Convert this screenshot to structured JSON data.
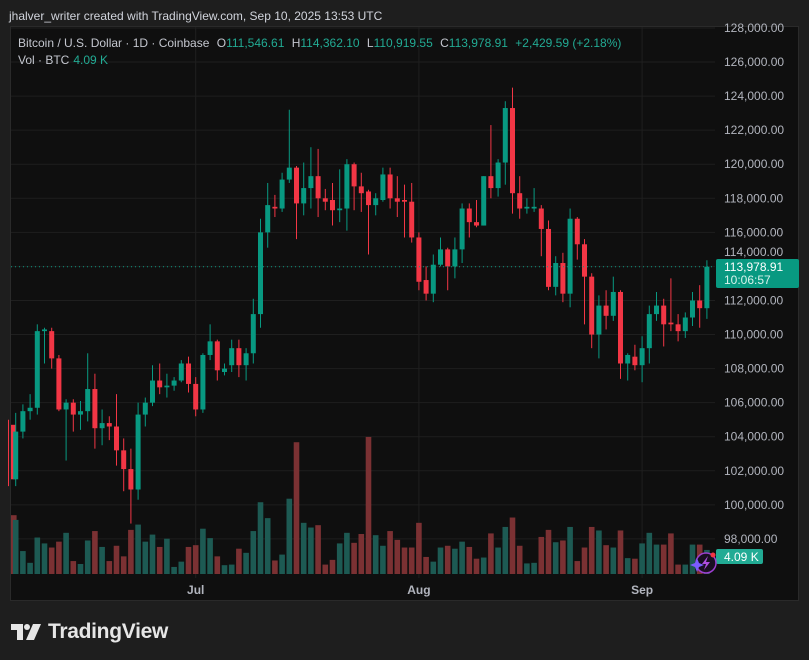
{
  "credit": "jhalver_writer created with TradingView.com, Sep 10, 2025 13:53 UTC",
  "legend": {
    "symbol": "Bitcoin / U.S. Dollar · 1D · Coinbase",
    "o_label": "O",
    "o": "111,546.61",
    "h_label": "H",
    "h": "114,362.10",
    "l_label": "L",
    "l": "110,919.55",
    "c_label": "C",
    "c": "113,978.91",
    "change": "+2,429.59 (+2.18%)",
    "vol_label": "Vol · BTC",
    "vol": "4.09 K"
  },
  "price_label": {
    "price": "113,978.91",
    "countdown": "10:06:57"
  },
  "vol_label_box": "4.09 K",
  "logo": "TradingView",
  "icons": {
    "assistant": "lightning-icon",
    "logo": "tradingview-logo-icon"
  },
  "colors": {
    "up": "#089981",
    "down": "#f23645",
    "vol_up": "#1d5a53",
    "vol_down": "#7b3133",
    "bg": "#0f0f0f"
  },
  "chart_data": {
    "type": "candlestick",
    "symbol": "Bitcoin / U.S. Dollar",
    "interval": "1D",
    "y_axis": {
      "position": "right",
      "range": [
        97000,
        128500
      ],
      "ticks": [
        "128,000.00",
        "126,000.00",
        "124,000.00",
        "122,000.00",
        "120,000.00",
        "118,000.00",
        "116,000.00",
        "114,000.00",
        "112,000.00",
        "110,000.00",
        "108,000.00",
        "106,000.00",
        "104,000.00",
        "102,000.00",
        "100,000.00",
        "98,000.00"
      ]
    },
    "x_axis": {
      "ticks": [
        {
          "label": "Jul",
          "date": "2025-07-01"
        },
        {
          "label": "Aug",
          "date": "2025-08-01"
        },
        {
          "label": "Sep",
          "date": "2025-09-01"
        }
      ]
    },
    "grid": true,
    "columns": [
      "date",
      "open",
      "high",
      "low",
      "close",
      "volume_k_btc"
    ],
    "candles": [
      [
        "2025-06-05",
        104700,
        105000,
        101100,
        101500,
        10.0
      ],
      [
        "2025-06-06",
        101500,
        105400,
        101100,
        104300,
        9.2
      ],
      [
        "2025-06-07",
        104300,
        105900,
        103900,
        105500,
        3.9
      ],
      [
        "2025-06-08",
        105500,
        106500,
        105000,
        105700,
        1.9
      ],
      [
        "2025-06-09",
        105700,
        110600,
        105300,
        110200,
        6.2
      ],
      [
        "2025-06-10",
        110200,
        110400,
        108300,
        110300,
        5.2
      ],
      [
        "2025-06-11",
        110200,
        110400,
        108000,
        108600,
        4.5
      ],
      [
        "2025-06-12",
        108600,
        108800,
        105500,
        105600,
        5.5
      ],
      [
        "2025-06-13",
        105600,
        106200,
        102600,
        106000,
        7.0
      ],
      [
        "2025-06-14",
        106000,
        106200,
        104300,
        105300,
        2.2
      ],
      [
        "2025-06-15",
        105300,
        106100,
        104400,
        105500,
        1.7
      ],
      [
        "2025-06-16",
        105500,
        108900,
        104900,
        106800,
        5.7
      ],
      [
        "2025-06-17",
        106800,
        107700,
        103300,
        104500,
        7.3
      ],
      [
        "2025-06-18",
        104500,
        105600,
        103500,
        104800,
        4.6
      ],
      [
        "2025-06-19",
        104800,
        105200,
        103800,
        104600,
        2.2
      ],
      [
        "2025-06-20",
        104600,
        106500,
        102300,
        103200,
        4.8
      ],
      [
        "2025-06-21",
        103200,
        103900,
        100800,
        102100,
        3.0
      ],
      [
        "2025-06-22",
        102100,
        103300,
        98900,
        100900,
        7.5
      ],
      [
        "2025-06-23",
        100900,
        106000,
        100300,
        105300,
        8.4
      ],
      [
        "2025-06-24",
        105300,
        106300,
        104600,
        106000,
        5.5
      ],
      [
        "2025-06-25",
        106000,
        108200,
        105800,
        107300,
        6.7
      ],
      [
        "2025-06-26",
        107300,
        108300,
        106500,
        106900,
        4.6
      ],
      [
        "2025-06-27",
        106900,
        107700,
        106300,
        107000,
        6.0
      ],
      [
        "2025-06-28",
        107000,
        107500,
        106700,
        107300,
        1.2
      ],
      [
        "2025-06-29",
        107300,
        108500,
        107200,
        108300,
        2.1
      ],
      [
        "2025-06-30",
        108300,
        108700,
        106600,
        107100,
        4.6
      ],
      [
        "2025-07-01",
        107100,
        107500,
        105200,
        105600,
        4.9
      ],
      [
        "2025-07-02",
        105600,
        108900,
        105400,
        108800,
        7.7
      ],
      [
        "2025-07-03",
        108800,
        110600,
        108500,
        109600,
        6.1
      ],
      [
        "2025-07-04",
        109600,
        109700,
        107300,
        107900,
        3.0
      ],
      [
        "2025-07-05",
        107800,
        108300,
        107600,
        108000,
        1.5
      ],
      [
        "2025-07-06",
        108200,
        109700,
        107800,
        109200,
        1.6
      ],
      [
        "2025-07-07",
        109200,
        109700,
        107500,
        108200,
        4.3
      ],
      [
        "2025-07-08",
        108200,
        109200,
        107300,
        108900,
        3.6
      ],
      [
        "2025-07-09",
        108900,
        112100,
        108300,
        111200,
        7.3
      ],
      [
        "2025-07-10",
        111200,
        116800,
        110400,
        116000,
        12.2
      ],
      [
        "2025-07-11",
        116000,
        118900,
        115100,
        117600,
        9.5
      ],
      [
        "2025-07-12",
        117500,
        118200,
        116900,
        117400,
        2.3
      ],
      [
        "2025-07-13",
        117400,
        119500,
        117200,
        119100,
        3.3
      ],
      [
        "2025-07-14",
        119100,
        123200,
        118900,
        119800,
        12.8
      ],
      [
        "2025-07-15",
        119800,
        119900,
        115600,
        117700,
        22.4
      ],
      [
        "2025-07-16",
        117700,
        120100,
        117000,
        118600,
        8.7
      ],
      [
        "2025-07-17",
        118600,
        121000,
        117400,
        119300,
        7.9
      ],
      [
        "2025-07-18",
        119300,
        120900,
        116900,
        118000,
        8.3
      ],
      [
        "2025-07-19",
        118000,
        118550,
        117300,
        117800,
        1.6
      ],
      [
        "2025-07-20",
        117900,
        118900,
        116400,
        117300,
        2.4
      ],
      [
        "2025-07-21",
        117300,
        119700,
        116600,
        117400,
        5.2
      ],
      [
        "2025-07-22",
        117400,
        120300,
        116100,
        120000,
        7.0
      ],
      [
        "2025-07-23",
        120000,
        120100,
        117300,
        118700,
        5.3
      ],
      [
        "2025-07-24",
        118700,
        119500,
        117200,
        118300,
        6.8
      ],
      [
        "2025-07-25",
        118400,
        118500,
        114700,
        117600,
        23.3
      ],
      [
        "2025-07-26",
        117600,
        118300,
        117000,
        118000,
        6.6
      ],
      [
        "2025-07-27",
        117900,
        119800,
        117800,
        119400,
        4.8
      ],
      [
        "2025-07-28",
        119400,
        119800,
        117400,
        118000,
        7.3
      ],
      [
        "2025-07-29",
        118000,
        119300,
        116900,
        117800,
        5.8
      ],
      [
        "2025-07-30",
        117900,
        118800,
        115700,
        117800,
        4.5
      ],
      [
        "2025-07-31",
        117800,
        118900,
        115400,
        115700,
        4.5
      ],
      [
        "2025-08-01",
        115700,
        116000,
        112600,
        113100,
        8.7
      ],
      [
        "2025-08-02",
        113200,
        114000,
        112000,
        112400,
        2.9
      ],
      [
        "2025-08-03",
        112400,
        114700,
        111900,
        114100,
        2.1
      ],
      [
        "2025-08-04",
        114100,
        115700,
        114000,
        115000,
        4.5
      ],
      [
        "2025-08-05",
        115000,
        115100,
        112600,
        114000,
        4.8
      ],
      [
        "2025-08-06",
        114000,
        115700,
        113300,
        115000,
        4.3
      ],
      [
        "2025-08-07",
        115000,
        117700,
        114200,
        117400,
        5.5
      ],
      [
        "2025-08-08",
        117400,
        117700,
        115700,
        116600,
        4.6
      ],
      [
        "2025-08-09",
        116600,
        117900,
        116300,
        116400,
        2.6
      ],
      [
        "2025-08-10",
        116400,
        119300,
        116400,
        119300,
        2.8
      ],
      [
        "2025-08-11",
        119300,
        122300,
        118000,
        118600,
        6.9
      ],
      [
        "2025-08-12",
        118600,
        120300,
        118100,
        120100,
        4.5
      ],
      [
        "2025-08-13",
        120100,
        123700,
        118800,
        123300,
        8.0
      ],
      [
        "2025-08-14",
        123300,
        124500,
        117100,
        118300,
        9.6
      ],
      [
        "2025-08-15",
        118300,
        119300,
        116800,
        117400,
        4.8
      ],
      [
        "2025-08-16",
        117400,
        118000,
        117100,
        117500,
        1.8
      ],
      [
        "2025-08-17",
        117400,
        118600,
        117200,
        117500,
        1.9
      ],
      [
        "2025-08-18",
        117400,
        117600,
        114600,
        116200,
        6.3
      ],
      [
        "2025-08-19",
        116200,
        116700,
        112600,
        112800,
        7.5
      ],
      [
        "2025-08-20",
        112800,
        114600,
        112300,
        114200,
        5.4
      ],
      [
        "2025-08-21",
        114200,
        114800,
        111900,
        112400,
        5.7
      ],
      [
        "2025-08-22",
        112400,
        117400,
        111600,
        116800,
        8.0
      ],
      [
        "2025-08-23",
        116800,
        116900,
        114400,
        115300,
        2.2
      ],
      [
        "2025-08-24",
        115300,
        115600,
        110600,
        113400,
        4.5
      ],
      [
        "2025-08-25",
        113400,
        113600,
        109200,
        110000,
        8.0
      ],
      [
        "2025-08-26",
        110000,
        112300,
        108600,
        111700,
        7.4
      ],
      [
        "2025-08-27",
        111700,
        112600,
        110300,
        111100,
        4.9
      ],
      [
        "2025-08-28",
        111100,
        113400,
        110800,
        112500,
        4.5
      ],
      [
        "2025-08-29",
        112500,
        112600,
        107400,
        108300,
        7.4
      ],
      [
        "2025-08-30",
        108300,
        108900,
        107300,
        108800,
        2.7
      ],
      [
        "2025-08-31",
        108700,
        109400,
        107900,
        108200,
        2.6
      ],
      [
        "2025-09-01",
        108200,
        109900,
        107200,
        109200,
        5.2
      ],
      [
        "2025-09-02",
        109200,
        111700,
        108300,
        111200,
        7.0
      ],
      [
        "2025-09-03",
        111200,
        112500,
        110800,
        111700,
        5.0
      ],
      [
        "2025-09-04",
        111700,
        112100,
        109300,
        110600,
        5.0
      ],
      [
        "2025-09-05",
        110700,
        113300,
        110200,
        110600,
        6.9
      ],
      [
        "2025-09-06",
        110600,
        111200,
        109600,
        110200,
        1.6
      ],
      [
        "2025-09-07",
        110200,
        111300,
        109800,
        111000,
        1.6
      ],
      [
        "2025-09-08",
        111000,
        112500,
        110500,
        112000,
        5.0
      ],
      [
        "2025-09-09",
        112000,
        112900,
        110400,
        111549,
        5.0
      ],
      [
        "2025-09-10",
        111546.61,
        114362.1,
        110919.55,
        113978.91,
        4.09
      ]
    ],
    "last_price": 113978.91
  }
}
